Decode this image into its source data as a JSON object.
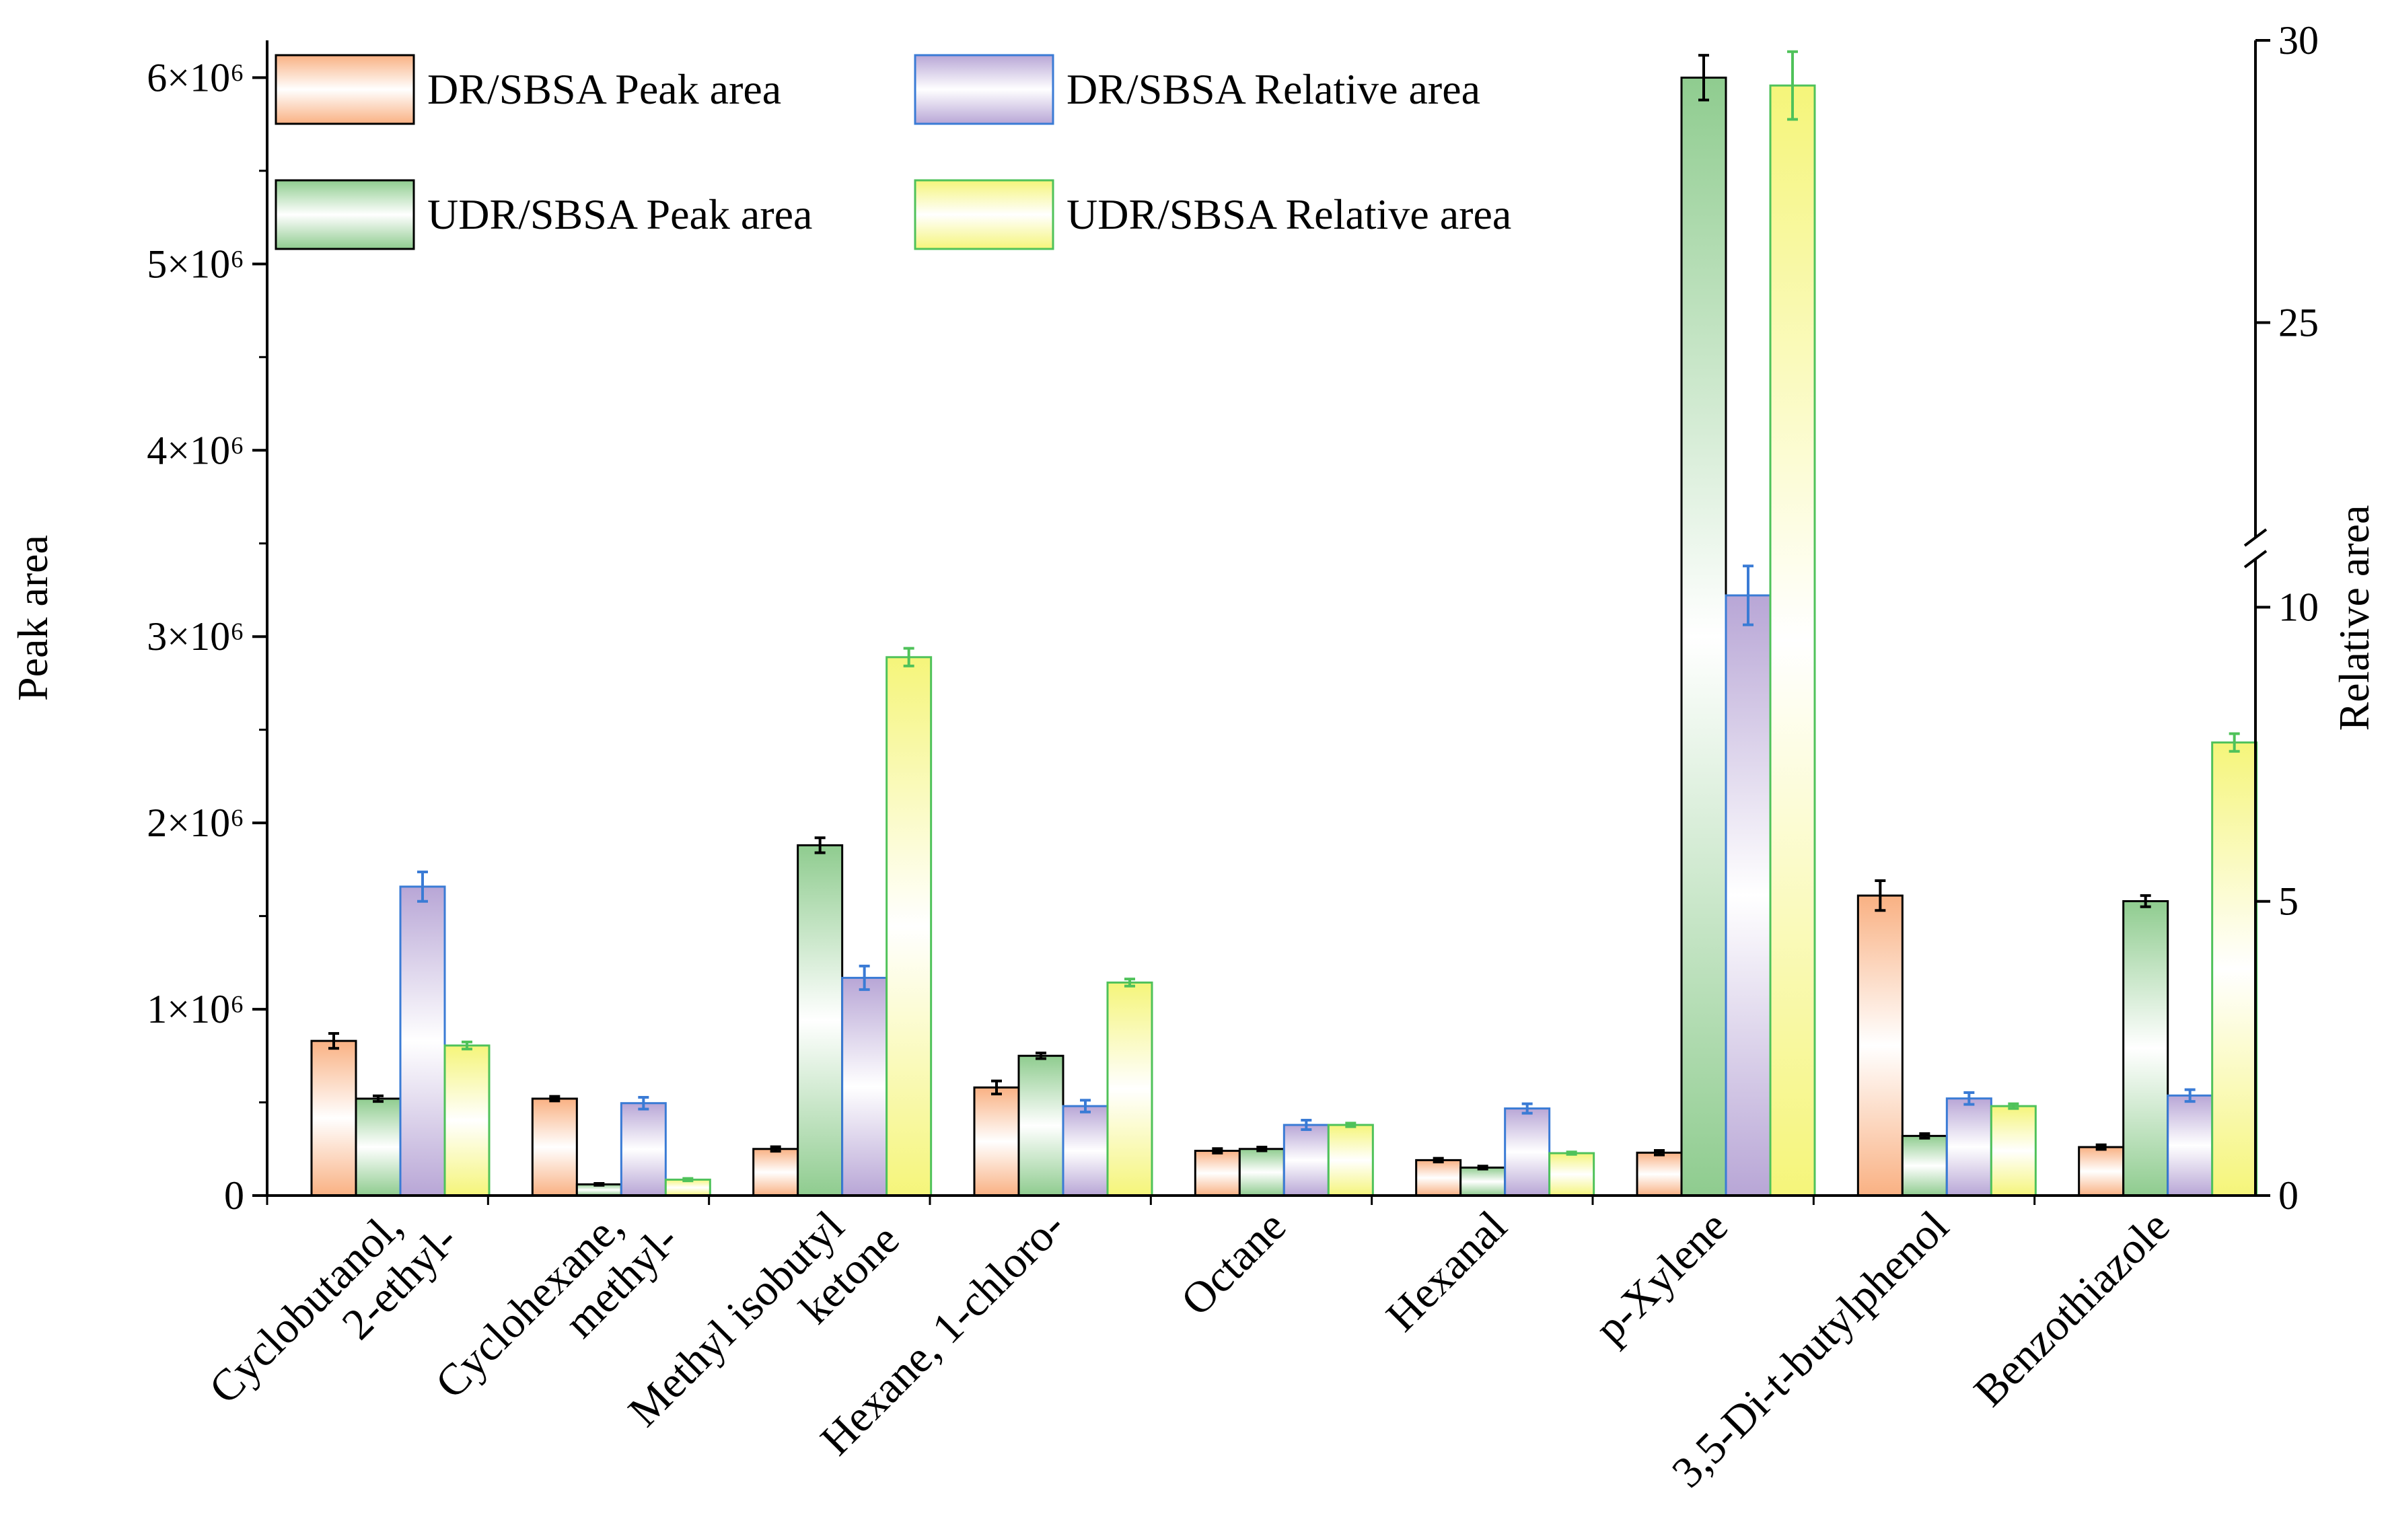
{
  "chart_data": {
    "type": "bar",
    "title": "",
    "xlabel": "",
    "ylabel": "Peak area",
    "y2label": "Relative area",
    "categories": [
      [
        "Cyclobutanol,",
        "2-ethyl-"
      ],
      [
        "Cyclohexane,",
        "methyl-"
      ],
      [
        "Methyl isobutyl",
        "ketone"
      ],
      [
        "Hexane, 1-chloro-"
      ],
      [
        "Octane"
      ],
      [
        "Hexanal"
      ],
      [
        "p-Xylene"
      ],
      [
        "3,5-Di-t-butylphenol"
      ],
      [
        "Benzothiazole"
      ]
    ],
    "ylim": [
      0,
      6200000
    ],
    "y_ticks": [
      0,
      1000000,
      2000000,
      3000000,
      4000000,
      5000000,
      6000000
    ],
    "y_tick_labels": [
      "0",
      "1×10⁶",
      "2×10⁶",
      "3×10⁶",
      "4×10⁶",
      "5×10⁶",
      "6×10⁶"
    ],
    "y2_segments": [
      {
        "range": [
          0,
          11
        ],
        "ticks": [
          0,
          5,
          10
        ],
        "tick_labels": [
          "0",
          "5",
          "10"
        ]
      },
      {
        "range": [
          21,
          30
        ],
        "ticks": [
          25,
          30
        ],
        "tick_labels": [
          "25",
          "30"
        ]
      }
    ],
    "series": [
      {
        "name": "DR/SBSA Peak area",
        "axis": "left",
        "color": "#f9b183",
        "edge": "#000000",
        "values": [
          830000,
          520000,
          250000,
          580000,
          240000,
          190000,
          230000,
          1610000,
          260000
        ],
        "errors": [
          40000,
          12000,
          12000,
          35000,
          12000,
          10000,
          12000,
          80000,
          12000
        ]
      },
      {
        "name": "UDR/SBSA Peak area",
        "axis": "left",
        "color": "#8fcc8f",
        "edge": "#000000",
        "values": [
          520000,
          60000,
          1880000,
          750000,
          250000,
          150000,
          6000000,
          320000,
          1580000
        ],
        "errors": [
          15000,
          5000,
          40000,
          15000,
          10000,
          8000,
          120000,
          12000,
          30000
        ]
      },
      {
        "name": "DR/SBSA Relative area",
        "axis": "right",
        "color": "#b8a6d6",
        "edge": "#3a7bd5",
        "values": [
          5.25,
          1.57,
          3.7,
          1.52,
          1.2,
          1.48,
          10.2,
          1.65,
          1.7
        ],
        "errors": [
          0.25,
          0.1,
          0.2,
          0.1,
          0.08,
          0.08,
          0.5,
          0.1,
          0.1
        ]
      },
      {
        "name": "UDR/SBSA Relative area",
        "axis": "right",
        "color": "#f5f57a",
        "edge": "#4fc25a",
        "values": [
          2.55,
          0.27,
          9.15,
          3.62,
          1.2,
          0.72,
          29.2,
          1.52,
          7.7
        ],
        "errors": [
          0.06,
          0.02,
          0.15,
          0.06,
          0.03,
          0.02,
          0.6,
          0.04,
          0.15
        ]
      }
    ],
    "legend": {
      "position": "top-left",
      "columns": 2
    }
  }
}
